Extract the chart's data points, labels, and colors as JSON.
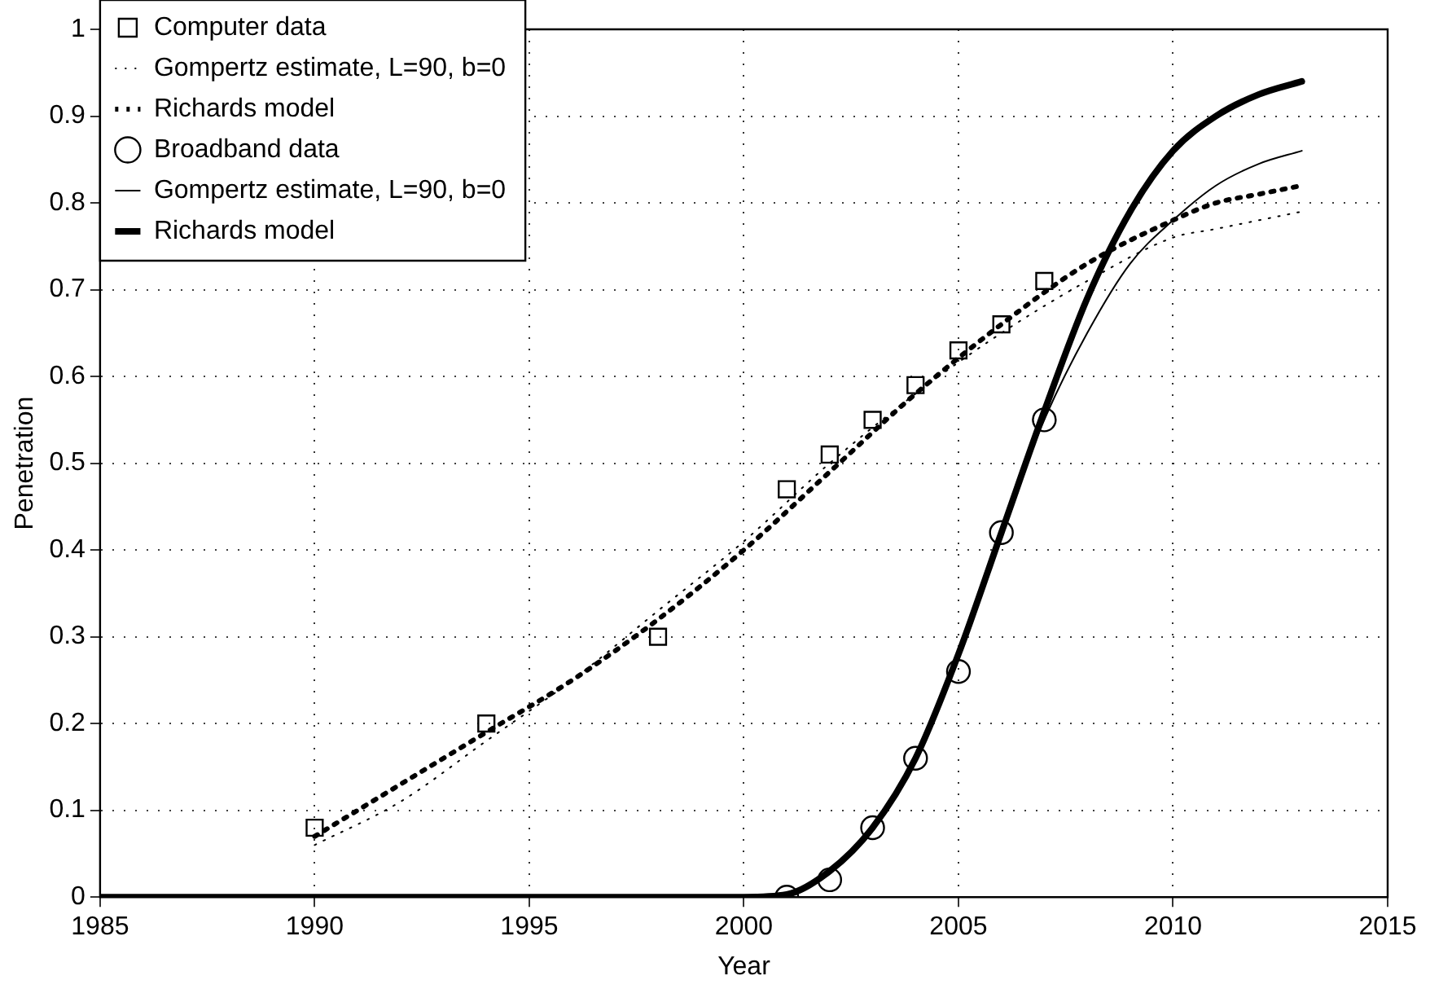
{
  "chart_data": {
    "type": "line",
    "xlabel": "Year",
    "ylabel": "Penetration",
    "xlim": [
      1985,
      2015
    ],
    "xticks": [
      1985,
      1990,
      1995,
      2000,
      2005,
      2010,
      2015
    ],
    "ylim": [
      0,
      1
    ],
    "yticks": [
      0,
      0.1,
      0.2,
      0.3,
      0.4,
      0.5,
      0.6,
      0.7,
      0.8,
      0.9,
      1
    ],
    "grid": true,
    "legend": "top left",
    "series": [
      {
        "type": "scatter",
        "name": "Computer data",
        "color": "#000000",
        "marker": "square",
        "x": [
          1990,
          1994,
          1998,
          2001,
          2002,
          2003,
          2004,
          2005,
          2006,
          2007
        ],
        "values": [
          0.08,
          0.2,
          0.3,
          0.47,
          0.51,
          0.55,
          0.59,
          0.63,
          0.66,
          0.71
        ]
      },
      {
        "type": "line",
        "name": "Gompertz estimate, L=90, b=0",
        "color": "#000000",
        "marker": "none",
        "line_style": "dotted",
        "x": [
          1990,
          1992,
          1994,
          1996,
          1998,
          2000,
          2002,
          2004,
          2006,
          2008,
          2010,
          2011,
          2012,
          2013
        ],
        "values": [
          0.06,
          0.11,
          0.18,
          0.25,
          0.33,
          0.41,
          0.5,
          0.58,
          0.65,
          0.71,
          0.76,
          0.77,
          0.78,
          0.79
        ]
      },
      {
        "type": "line",
        "name": "Richards model",
        "color": "#000000",
        "marker": "none",
        "line_style": "dashed",
        "x": [
          1990,
          1992,
          1994,
          1996,
          1998,
          2000,
          2002,
          2004,
          2006,
          2008,
          2010,
          2011,
          2012,
          2013
        ],
        "values": [
          0.07,
          0.13,
          0.19,
          0.25,
          0.32,
          0.4,
          0.49,
          0.58,
          0.66,
          0.73,
          0.78,
          0.8,
          0.81,
          0.82
        ]
      },
      {
        "type": "scatter",
        "name": "Broadband data",
        "color": "#000000",
        "marker": "circle",
        "x": [
          2001,
          2002,
          2003,
          2004,
          2005,
          2006,
          2007
        ],
        "values": [
          0,
          0.02,
          0.08,
          0.16,
          0.26,
          0.42,
          0.55
        ]
      },
      {
        "type": "line",
        "name": "Gompertz estimate, L=90, b=0",
        "color": "#000000",
        "marker": "none",
        "line_style": "solid",
        "x": [
          1985,
          2000,
          2001,
          2002,
          2003,
          2004,
          2005,
          2006,
          2007,
          2008,
          2009,
          2010,
          2011,
          2012,
          2013
        ],
        "values": [
          0,
          0,
          0.003,
          0.03,
          0.08,
          0.16,
          0.28,
          0.42,
          0.55,
          0.65,
          0.73,
          0.78,
          0.82,
          0.845,
          0.86
        ]
      },
      {
        "type": "line",
        "name": "Richards model",
        "color": "#000000",
        "marker": "none",
        "line_style": "solid",
        "x": [
          1985,
          2000,
          2001,
          2002,
          2003,
          2004,
          2005,
          2006,
          2007,
          2008,
          2009,
          2010,
          2011,
          2012,
          2013
        ],
        "values": [
          0,
          0,
          0.003,
          0.03,
          0.08,
          0.16,
          0.28,
          0.42,
          0.56,
          0.69,
          0.79,
          0.86,
          0.9,
          0.925,
          0.94
        ]
      }
    ]
  }
}
